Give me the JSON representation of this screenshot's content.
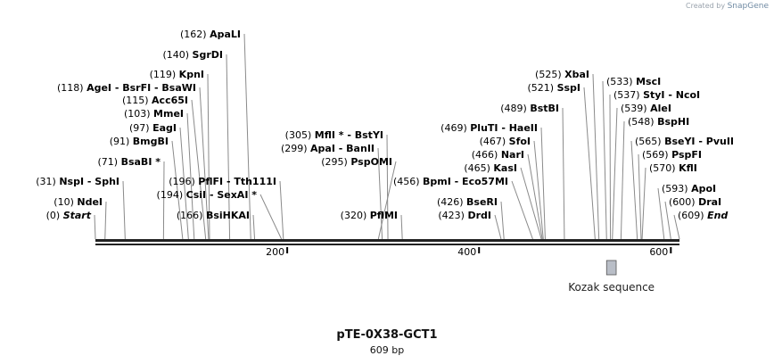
{
  "watermark": {
    "prefix": "Created by",
    "brand": "SnapGene"
  },
  "plasmid": {
    "name": "pTE-0X38-GCT1",
    "length_label": "609 bp",
    "length": 609
  },
  "sites": [
    {
      "pos_label": "(0)",
      "name": "Start",
      "italic": true,
      "cut": 0
    },
    {
      "pos_label": "(600)",
      "name": "DraI",
      "italic": false,
      "cut": 600
    },
    {
      "pos_label": "(609)",
      "name": "End",
      "italic": true,
      "cut": 609
    },
    {
      "pos_label": "(10)",
      "name": "NdeI",
      "italic": false,
      "cut": 10
    },
    {
      "pos_label": "(593)",
      "name": "ApoI",
      "italic": false,
      "cut": 593
    },
    {
      "pos_label": "(31)",
      "name": "NspI  -  SphI",
      "italic": false,
      "cut": 31
    },
    {
      "pos_label": "(570)",
      "name": "KflI",
      "italic": false,
      "cut": 570
    },
    {
      "pos_label": "(569)",
      "name": "PspFI",
      "italic": false,
      "cut": 569
    },
    {
      "pos_label": "(71)",
      "name": "BsaBI *",
      "italic": false,
      "cut": 71
    },
    {
      "pos_label": "(565)",
      "name": "BseYI  -  PvuII",
      "italic": false,
      "cut": 565
    },
    {
      "pos_label": "(91)",
      "name": "BmgBI",
      "italic": false,
      "cut": 91
    },
    {
      "pos_label": "(548)",
      "name": "BspHI",
      "italic": false,
      "cut": 548
    },
    {
      "pos_label": "(97)",
      "name": "EagI",
      "italic": false,
      "cut": 97
    },
    {
      "pos_label": "(539)",
      "name": "AleI",
      "italic": false,
      "cut": 539
    },
    {
      "pos_label": "(103)",
      "name": "MmeI",
      "italic": false,
      "cut": 103
    },
    {
      "pos_label": "(537)",
      "name": "StyI  -  NcoI",
      "italic": false,
      "cut": 537
    },
    {
      "pos_label": "(115)",
      "name": "Acc65I",
      "italic": false,
      "cut": 115
    },
    {
      "pos_label": "(533)",
      "name": "MscI",
      "italic": false,
      "cut": 533
    },
    {
      "pos_label": "(118)",
      "name": "AgeI  -  BsrFI  -  BsaWI",
      "italic": false,
      "cut": 118
    },
    {
      "pos_label": "(521)",
      "name": "SspI",
      "italic": false,
      "cut": 521
    },
    {
      "pos_label": "(119)",
      "name": "KpnI",
      "italic": false,
      "cut": 119
    },
    {
      "pos_label": "(525)",
      "name": "XbaI",
      "italic": false,
      "cut": 525
    },
    {
      "pos_label": "(140)",
      "name": "SgrDI",
      "italic": false,
      "cut": 140
    },
    {
      "pos_label": "(162)",
      "name": "ApaLI",
      "italic": false,
      "cut": 162
    },
    {
      "pos_label": "(166)",
      "name": "BsiHKAI",
      "italic": false,
      "cut": 166
    },
    {
      "pos_label": "(194)",
      "name": "CsiI  -  SexAI *",
      "italic": false,
      "cut": 194
    },
    {
      "pos_label": "(196)",
      "name": "PflFI  -  Tth111I",
      "italic": false,
      "cut": 196
    },
    {
      "pos_label": "(320)",
      "name": "PflMI",
      "italic": false,
      "cut": 320
    },
    {
      "pos_label": "(295)",
      "name": "PspOMI",
      "italic": false,
      "cut": 295
    },
    {
      "pos_label": "(299)",
      "name": "ApaI  -  BanII",
      "italic": false,
      "cut": 299
    },
    {
      "pos_label": "(305)",
      "name": "MflI *  -  BstYI",
      "italic": false,
      "cut": 305
    },
    {
      "pos_label": "(423)",
      "name": "DrdI",
      "italic": false,
      "cut": 423
    },
    {
      "pos_label": "(426)",
      "name": "BseRI",
      "italic": false,
      "cut": 426
    },
    {
      "pos_label": "(456)",
      "name": "BpmI  -  Eco57MI",
      "italic": false,
      "cut": 456
    },
    {
      "pos_label": "(465)",
      "name": "KasI",
      "italic": false,
      "cut": 465
    },
    {
      "pos_label": "(466)",
      "name": "NarI",
      "italic": false,
      "cut": 466
    },
    {
      "pos_label": "(467)",
      "name": "SfoI",
      "italic": false,
      "cut": 467
    },
    {
      "pos_label": "(469)",
      "name": "PluTI  -  HaeII",
      "italic": false,
      "cut": 469
    },
    {
      "pos_label": "(489)",
      "name": "BstBI",
      "italic": false,
      "cut": 489
    }
  ],
  "ticks": [
    {
      "value": 200,
      "label": "200"
    },
    {
      "value": 400,
      "label": "400"
    },
    {
      "value": 600,
      "label": "600"
    }
  ],
  "features": [
    {
      "name": "Kozak sequence",
      "start": 533,
      "end": 543,
      "color": "#b9bec7"
    }
  ]
}
